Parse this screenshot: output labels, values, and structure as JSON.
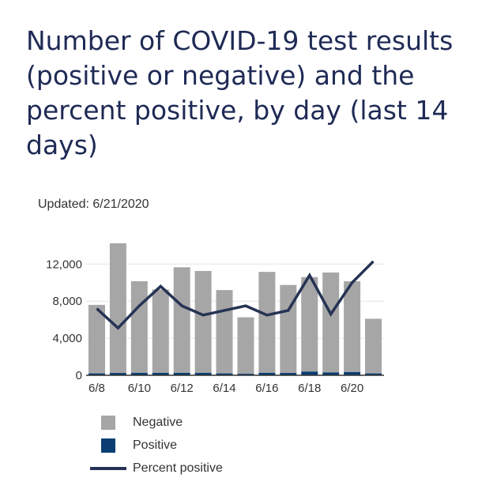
{
  "title": "Number of COVID-19 test results (positive or negative) and the percent positive, by day (last 14 days)",
  "updated": "Updated: 6/21/2020",
  "colors": {
    "negative": "#a6a6a6",
    "positive": "#0b3d73",
    "percent_line": "#263354",
    "grid": "#e6e6e6",
    "axis": "#333333"
  },
  "chart_data": {
    "type": "bar",
    "stacked": true,
    "categories": [
      "6/8",
      "6/9",
      "6/10",
      "6/11",
      "6/12",
      "6/13",
      "6/14",
      "6/15",
      "6/16",
      "6/17",
      "6/18",
      "6/19",
      "6/20",
      "6/21"
    ],
    "x_tick_labels": [
      "6/8",
      "6/10",
      "6/12",
      "6/14",
      "6/16",
      "6/18",
      "6/20"
    ],
    "y_ticks": [
      "0",
      "4,000",
      "8,000",
      "12,000"
    ],
    "ylim": [
      0,
      14500
    ],
    "grid": true,
    "legend_position": "bottom",
    "series": [
      {
        "name": "Positive",
        "values": [
          200,
          250,
          260,
          260,
          260,
          260,
          200,
          160,
          260,
          250,
          400,
          300,
          350,
          200
        ]
      },
      {
        "name": "Negative",
        "values": [
          7400,
          14000,
          9900,
          9000,
          11400,
          11000,
          9000,
          6100,
          10900,
          9500,
          10200,
          10800,
          9800,
          5900
        ]
      }
    ],
    "line_series": {
      "name": "Percent positive",
      "relative_values": [
        7200,
        5100,
        7500,
        9600,
        7500,
        6500,
        7000,
        7500,
        6500,
        7000,
        10800,
        6600,
        10000,
        12300
      ]
    }
  }
}
